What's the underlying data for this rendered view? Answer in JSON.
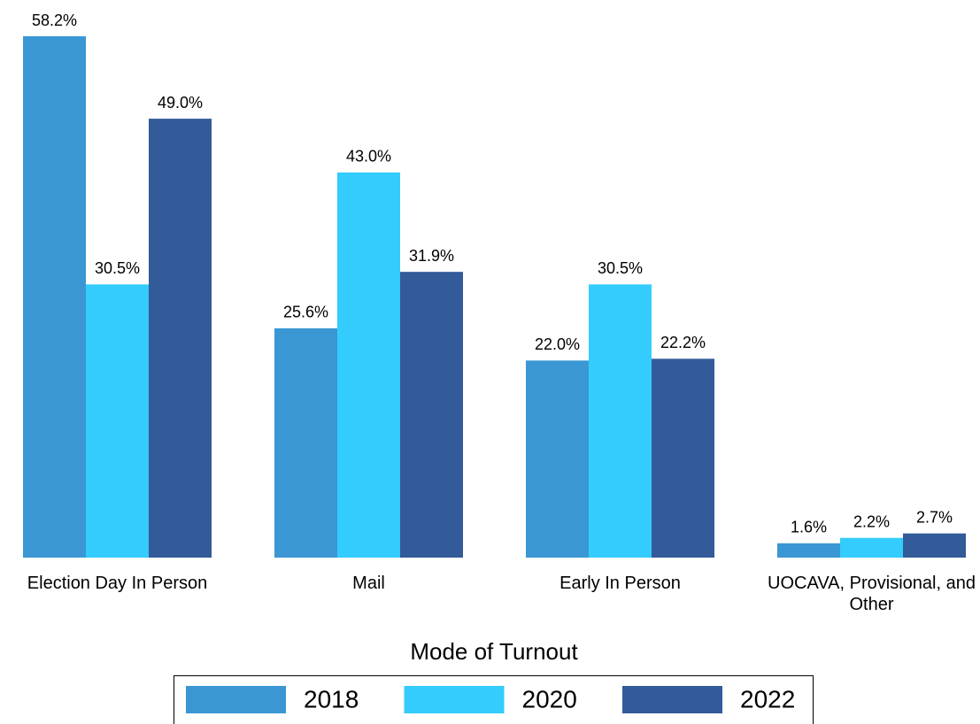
{
  "chart_data": {
    "type": "bar",
    "title": "Mode of Turnout",
    "categories": [
      "Election Day In Person",
      "Mail",
      "Early In Person",
      "UOCAVA, Provisional, and Other"
    ],
    "series": [
      {
        "name": "2018",
        "color": "#3a97d4",
        "values": [
          58.2,
          25.6,
          22.0,
          1.6
        ],
        "value_labels": [
          "58.2%",
          "25.6%",
          "22.0%",
          "1.6%"
        ]
      },
      {
        "name": "2020",
        "color": "#33ccfc",
        "values": [
          30.5,
          43.0,
          30.5,
          2.2
        ],
        "value_labels": [
          "30.5%",
          "43.0%",
          "30.5%",
          "2.2%"
        ]
      },
      {
        "name": "2022",
        "color": "#335b99",
        "values": [
          49.0,
          31.9,
          22.2,
          2.7
        ],
        "value_labels": [
          "49.0%",
          "31.9%",
          "22.2%",
          "2.7%"
        ]
      }
    ],
    "legend": "bottom"
  }
}
